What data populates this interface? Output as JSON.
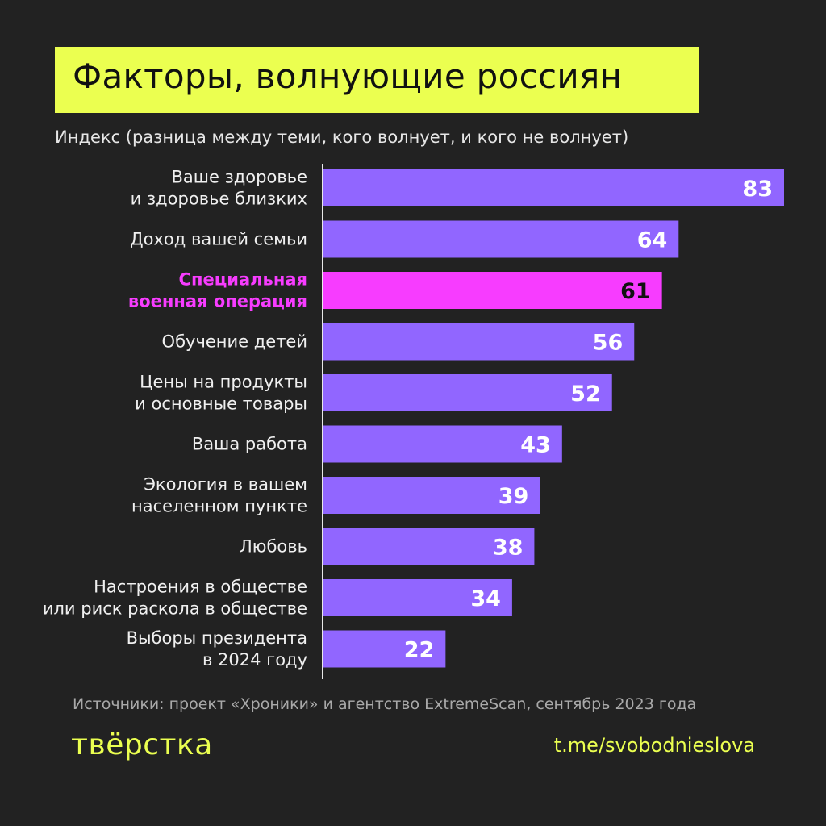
{
  "title": "Факторы, волнующие россиян",
  "subtitle": "Индекс (разница между теми, кого волнует, и кого не волнует)",
  "source": "Источники: проект «Хроники» и агентство ExtremeScan, сентябрь 2023 года",
  "logo": "тВЁРСТКА",
  "link": "t.me/svobodnieslova",
  "colors": {
    "background": "#222222",
    "bar": "#9166ff",
    "highlight": "#f73cff",
    "accent": "#ebff50"
  },
  "chart_data": {
    "type": "bar",
    "orientation": "horizontal",
    "title": "Факторы, волнующие россиян",
    "subtitle": "Индекс (разница между теми, кого волнует, и кого не волнует)",
    "categories": [
      [
        "Ваше здоровье",
        "и здоровье близких"
      ],
      [
        "Доход вашей семьи"
      ],
      [
        "Специальная",
        "военная операция"
      ],
      [
        "Обучение детей"
      ],
      [
        "Цены на продукты",
        "и основные товары"
      ],
      [
        "Ваша работа"
      ],
      [
        "Экология в вашем",
        "населенном пункте"
      ],
      [
        "Любовь"
      ],
      [
        "Настроения в обществе",
        "или риск раскола в обществе"
      ],
      [
        "Выборы президента",
        "в 2024 году"
      ]
    ],
    "values": [
      83,
      64,
      61,
      56,
      52,
      43,
      39,
      38,
      34,
      22
    ],
    "highlighted_index": 2,
    "xlim": [
      0,
      83
    ],
    "grid": false,
    "data_labels": true
  }
}
